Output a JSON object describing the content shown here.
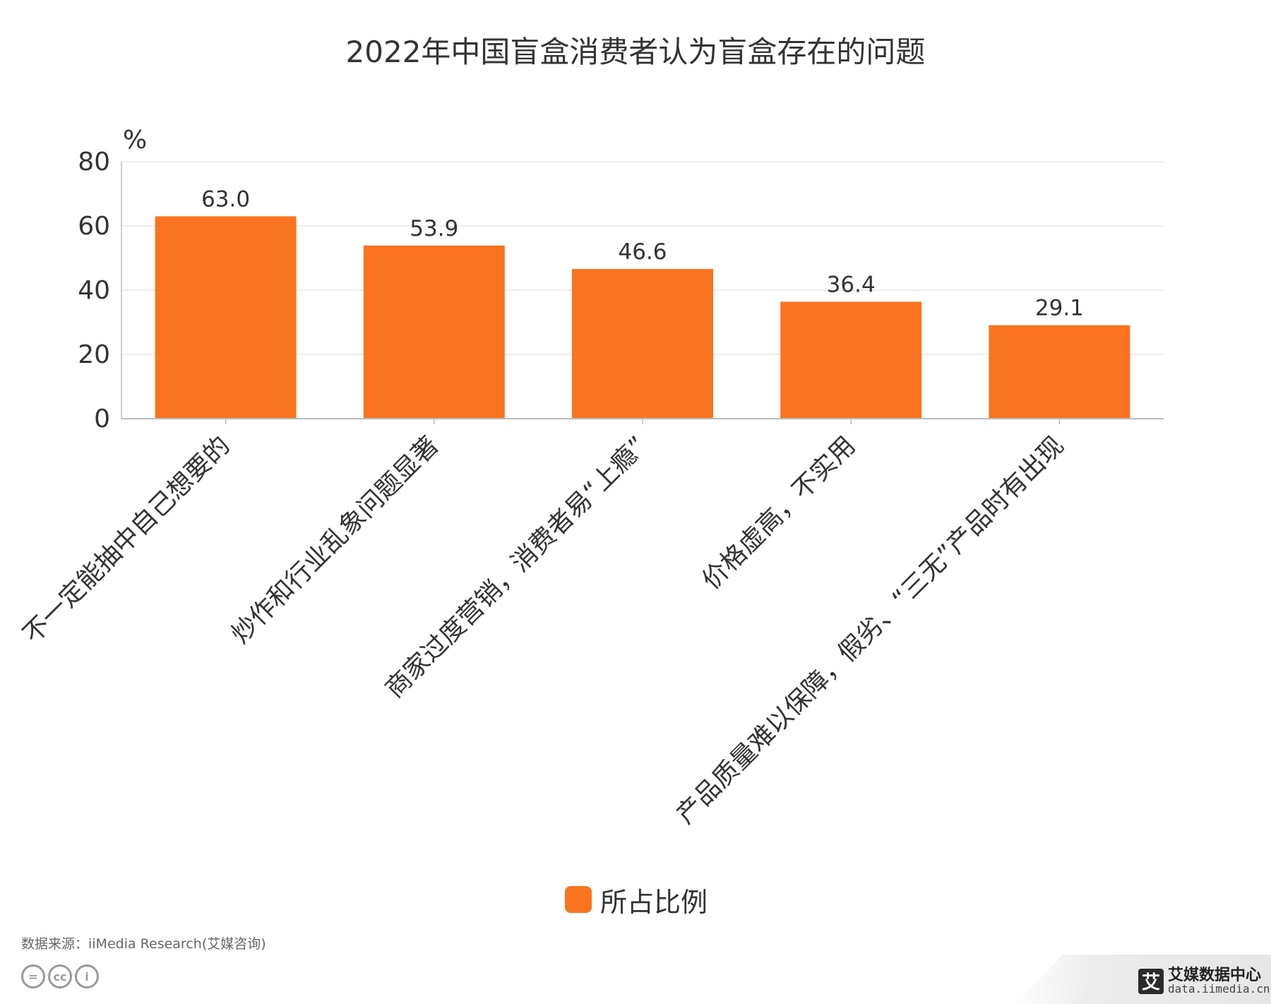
{
  "chart_data": {
    "type": "bar",
    "title": "2022年中国盲盒消费者认为盲盒存在的问题",
    "unit_label": "%",
    "categories": [
      "不一定能抽中自己想要的",
      "炒作和行业乱象问题显著",
      "商家过度营销，消费者易“上瘾”",
      "价格虚高，不实用",
      "产品质量难以保障，假劣、“三无”产品时有出现"
    ],
    "series": [
      {
        "name": "所占比例",
        "values": [
          63.0,
          53.9,
          46.6,
          36.4,
          29.1
        ],
        "color": "#FA7320"
      }
    ],
    "data_labels": [
      "63.0",
      "53.9",
      "46.6",
      "36.4",
      "29.1"
    ],
    "ylim": [
      0,
      80
    ],
    "yticks": [
      0,
      20,
      40,
      60,
      80
    ],
    "grid": true,
    "legend_position": "bottom-center"
  },
  "footer": {
    "source": "数据来源：iiMedia Research(艾媒咨询)",
    "cc_icons": [
      "=",
      "cc",
      "i"
    ],
    "brand_logo": "艾",
    "brand_name": "艾媒数据中心",
    "brand_url": "data.iimedia.cn"
  }
}
